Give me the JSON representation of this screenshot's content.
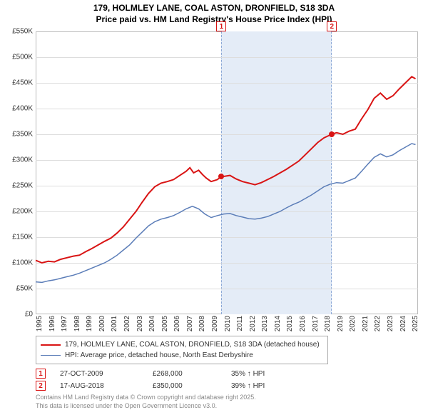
{
  "title_line1": "179, HOLMLEY LANE, COAL ASTON, DRONFIELD, S18 3DA",
  "title_line2": "Price paid vs. HM Land Registry's House Price Index (HPI)",
  "chart": {
    "type": "line",
    "background_color": "#ffffff",
    "grid_color": "#dddddd",
    "axis_color": "#bbbbbb",
    "shade_color": "#e4ecf7",
    "x_start": 1995,
    "x_end": 2025.5,
    "x_ticks": [
      1995,
      1996,
      1997,
      1998,
      1999,
      2000,
      2001,
      2002,
      2003,
      2004,
      2005,
      2006,
      2007,
      2008,
      2009,
      2010,
      2011,
      2012,
      2013,
      2014,
      2015,
      2016,
      2017,
      2018,
      2019,
      2020,
      2021,
      2022,
      2023,
      2024,
      2025
    ],
    "y_min": 0,
    "y_max": 550,
    "y_ticks": [
      0,
      50,
      100,
      150,
      200,
      250,
      300,
      350,
      400,
      450,
      500,
      550
    ],
    "y_tick_labels": [
      "£0",
      "£50K",
      "£100K",
      "£150K",
      "£200K",
      "£250K",
      "£300K",
      "£350K",
      "£400K",
      "£450K",
      "£500K",
      "£550K"
    ],
    "series": [
      {
        "name": "property",
        "label": "179, HOLMLEY LANE, COAL ASTON, DRONFIELD, S18 3DA (detached house)",
        "color": "#d91414",
        "line_width": 2,
        "points": [
          [
            1995,
            105
          ],
          [
            1995.5,
            100
          ],
          [
            1996,
            103
          ],
          [
            1996.5,
            102
          ],
          [
            1997,
            107
          ],
          [
            1997.5,
            110
          ],
          [
            1998,
            113
          ],
          [
            1998.5,
            115
          ],
          [
            1999,
            122
          ],
          [
            1999.5,
            128
          ],
          [
            2000,
            135
          ],
          [
            2000.5,
            142
          ],
          [
            2001,
            148
          ],
          [
            2001.5,
            158
          ],
          [
            2002,
            170
          ],
          [
            2002.5,
            185
          ],
          [
            2003,
            200
          ],
          [
            2003.5,
            218
          ],
          [
            2004,
            235
          ],
          [
            2004.5,
            248
          ],
          [
            2005,
            255
          ],
          [
            2005.5,
            258
          ],
          [
            2006,
            262
          ],
          [
            2006.5,
            270
          ],
          [
            2007,
            278
          ],
          [
            2007.3,
            285
          ],
          [
            2007.6,
            275
          ],
          [
            2008,
            280
          ],
          [
            2008.3,
            272
          ],
          [
            2008.6,
            265
          ],
          [
            2009,
            258
          ],
          [
            2009.5,
            262
          ],
          [
            2009.8,
            268
          ],
          [
            2010,
            268
          ],
          [
            2010.5,
            270
          ],
          [
            2011,
            263
          ],
          [
            2011.5,
            258
          ],
          [
            2012,
            255
          ],
          [
            2012.5,
            252
          ],
          [
            2013,
            256
          ],
          [
            2013.5,
            262
          ],
          [
            2014,
            268
          ],
          [
            2014.5,
            275
          ],
          [
            2015,
            282
          ],
          [
            2015.5,
            290
          ],
          [
            2016,
            298
          ],
          [
            2016.5,
            310
          ],
          [
            2017,
            322
          ],
          [
            2017.5,
            334
          ],
          [
            2018,
            343
          ],
          [
            2018.6,
            350
          ],
          [
            2019,
            353
          ],
          [
            2019.5,
            350
          ],
          [
            2020,
            356
          ],
          [
            2020.5,
            360
          ],
          [
            2021,
            380
          ],
          [
            2021.5,
            398
          ],
          [
            2022,
            420
          ],
          [
            2022.5,
            430
          ],
          [
            2023,
            418
          ],
          [
            2023.5,
            425
          ],
          [
            2024,
            438
          ],
          [
            2024.5,
            450
          ],
          [
            2025,
            462
          ],
          [
            2025.3,
            458
          ]
        ]
      },
      {
        "name": "hpi",
        "label": "HPI: Average price, detached house, North East Derbyshire",
        "color": "#5b7db8",
        "line_width": 1.5,
        "points": [
          [
            1995,
            63
          ],
          [
            1995.5,
            62
          ],
          [
            1996,
            65
          ],
          [
            1996.5,
            67
          ],
          [
            1997,
            70
          ],
          [
            1997.5,
            73
          ],
          [
            1998,
            76
          ],
          [
            1998.5,
            80
          ],
          [
            1999,
            85
          ],
          [
            1999.5,
            90
          ],
          [
            2000,
            95
          ],
          [
            2000.5,
            100
          ],
          [
            2001,
            107
          ],
          [
            2001.5,
            115
          ],
          [
            2002,
            125
          ],
          [
            2002.5,
            135
          ],
          [
            2003,
            148
          ],
          [
            2003.5,
            160
          ],
          [
            2004,
            172
          ],
          [
            2004.5,
            180
          ],
          [
            2005,
            185
          ],
          [
            2005.5,
            188
          ],
          [
            2006,
            192
          ],
          [
            2006.5,
            198
          ],
          [
            2007,
            205
          ],
          [
            2007.5,
            210
          ],
          [
            2008,
            205
          ],
          [
            2008.5,
            195
          ],
          [
            2009,
            188
          ],
          [
            2009.5,
            192
          ],
          [
            2010,
            195
          ],
          [
            2010.5,
            196
          ],
          [
            2011,
            192
          ],
          [
            2011.5,
            189
          ],
          [
            2012,
            186
          ],
          [
            2012.5,
            185
          ],
          [
            2013,
            187
          ],
          [
            2013.5,
            190
          ],
          [
            2014,
            195
          ],
          [
            2014.5,
            200
          ],
          [
            2015,
            207
          ],
          [
            2015.5,
            213
          ],
          [
            2016,
            218
          ],
          [
            2016.5,
            225
          ],
          [
            2017,
            232
          ],
          [
            2017.5,
            240
          ],
          [
            2018,
            248
          ],
          [
            2018.5,
            253
          ],
          [
            2019,
            256
          ],
          [
            2019.5,
            255
          ],
          [
            2020,
            260
          ],
          [
            2020.5,
            265
          ],
          [
            2021,
            278
          ],
          [
            2021.5,
            292
          ],
          [
            2022,
            305
          ],
          [
            2022.5,
            312
          ],
          [
            2023,
            306
          ],
          [
            2023.5,
            310
          ],
          [
            2024,
            318
          ],
          [
            2024.5,
            325
          ],
          [
            2025,
            332
          ],
          [
            2025.3,
            330
          ]
        ]
      }
    ],
    "ownership_shade": {
      "start": 2009.82,
      "end": 2018.63
    },
    "sale_markers": [
      {
        "num": "1",
        "x": 2009.82,
        "color": "#d91414"
      },
      {
        "num": "2",
        "x": 2018.63,
        "color": "#d91414"
      }
    ],
    "sale_points": [
      {
        "x": 2009.82,
        "y": 268,
        "color": "#d91414"
      },
      {
        "x": 2018.63,
        "y": 350,
        "color": "#d91414"
      }
    ]
  },
  "sales_table": [
    {
      "num": "1",
      "date": "27-OCT-2009",
      "price": "£268,000",
      "delta": "35% ↑ HPI",
      "color": "#d91414"
    },
    {
      "num": "2",
      "date": "17-AUG-2018",
      "price": "£350,000",
      "delta": "39% ↑ HPI",
      "color": "#d91414"
    }
  ],
  "attribution_line1": "Contains HM Land Registry data © Crown copyright and database right 2025.",
  "attribution_line2": "This data is licensed under the Open Government Licence v3.0."
}
